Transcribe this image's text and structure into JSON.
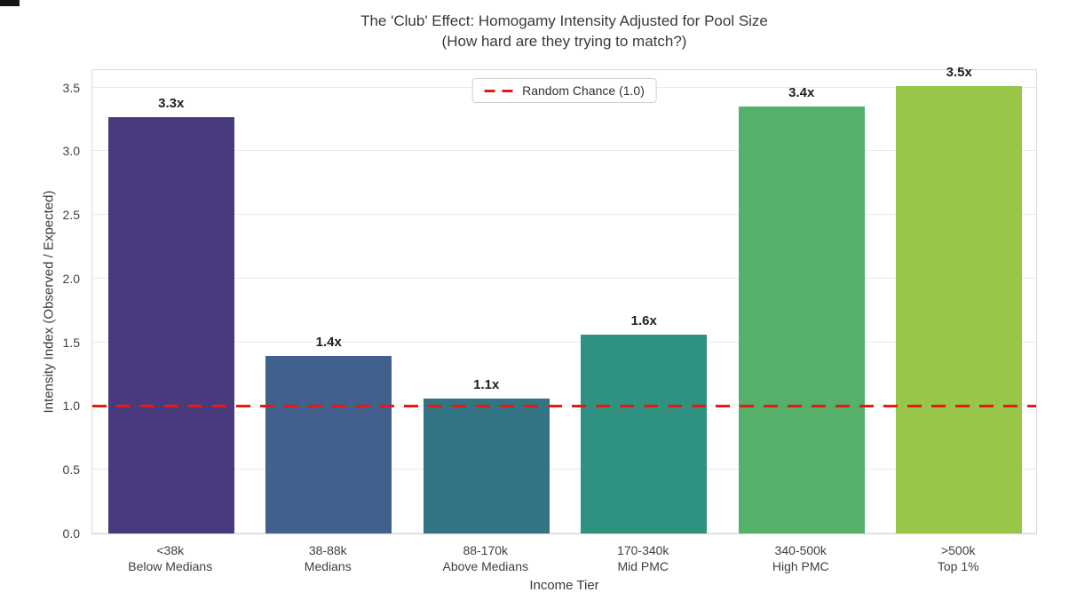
{
  "chart_data": {
    "type": "bar",
    "title": "The 'Club' Effect: Homogamy Intensity Adjusted for Pool Size",
    "subtitle": "(How hard are they trying to match?)",
    "xlabel": "Income Tier",
    "ylabel": "Intensity Index (Observed / Expected)",
    "categories": [
      {
        "range": "<38k",
        "label": "Below Medians"
      },
      {
        "range": "38-88k",
        "label": "Medians"
      },
      {
        "range": "88-170k",
        "label": "Above Medians"
      },
      {
        "range": "170-340k",
        "label": "Mid PMC"
      },
      {
        "range": "340-500k",
        "label": "High PMC"
      },
      {
        "range": ">500k",
        "label": "Top 1%"
      }
    ],
    "values": [
      3.27,
      1.39,
      1.06,
      1.56,
      3.35,
      3.51
    ],
    "bar_labels": [
      "3.3x",
      "1.4x",
      "1.1x",
      "1.6x",
      "3.4x",
      "3.5x"
    ],
    "bar_colors": [
      "#483a7c",
      "#41608c",
      "#337585",
      "#2f9180",
      "#55b06a",
      "#97c648"
    ],
    "ytick_labels": [
      "0.0",
      "0.5",
      "1.0",
      "1.5",
      "2.0",
      "2.5",
      "3.0",
      "3.5"
    ],
    "ytick_values": [
      0,
      0.5,
      1,
      1.5,
      2,
      2.5,
      3,
      3.5
    ],
    "ylim": [
      0,
      3.65
    ],
    "grid": "horizontal",
    "legend": {
      "label": "Random Chance (1.0)",
      "position": "upper center"
    },
    "reference_line": {
      "value": 1.0,
      "color": "#e8190f",
      "style": "dashed"
    },
    "colors": {
      "grid": "#eaeaea",
      "spine": "#d9d9d9",
      "title_text": "#3a3a3a",
      "bar_label_text": "#1f1f1f"
    }
  }
}
